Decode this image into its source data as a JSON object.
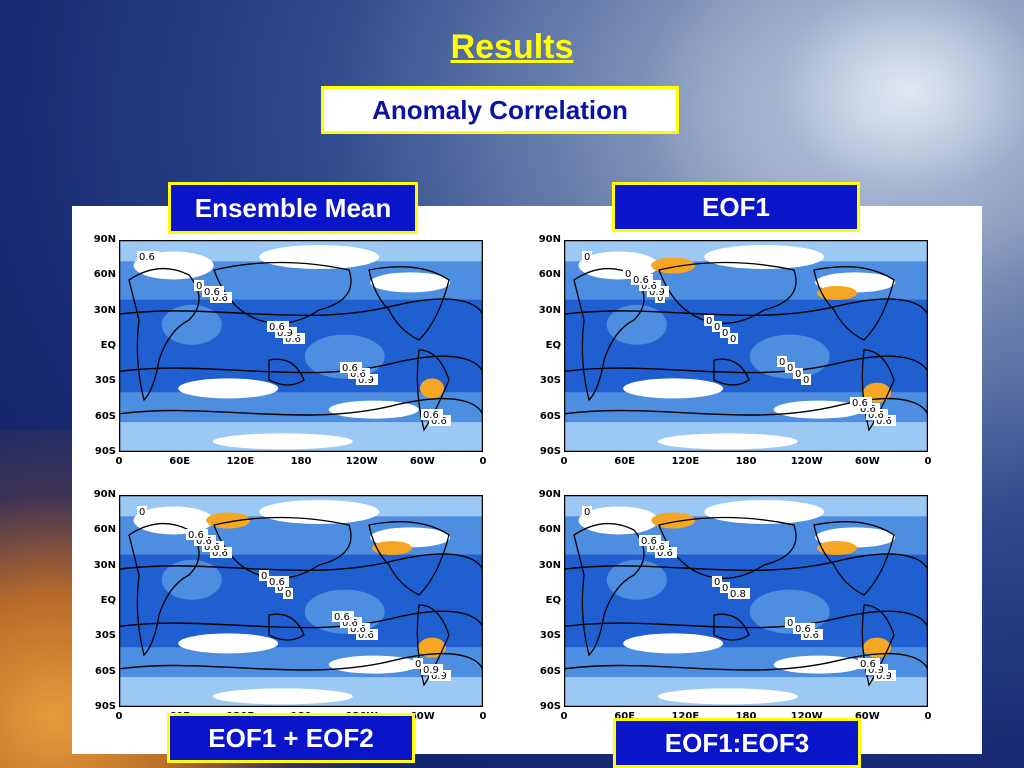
{
  "slide": {
    "title": "Results",
    "subtitle": "Anomaly Correlation"
  },
  "panels": [
    {
      "label": "Ensemble Mean",
      "contour_labels": [
        "0.6",
        "0.6",
        "0.6",
        "0.9",
        "0.6",
        "0.6",
        "0.9",
        "0.6",
        "0.6",
        "0",
        "0.6",
        "0.6"
      ]
    },
    {
      "label": "EOF1",
      "contour_labels": [
        "0",
        "0",
        "0",
        "0",
        "0.6",
        "0.9",
        "0",
        "0",
        "0.6",
        "0.6",
        "0",
        "0",
        "0.6",
        "0.6",
        "0",
        "0",
        "0.6",
        "0"
      ]
    },
    {
      "label": "EOF1 + EOF2",
      "contour_labels": [
        "0",
        "0.6",
        "0",
        "0.6",
        "0.9",
        "0.6",
        "0",
        "0.6",
        "0.9",
        "0.6",
        "0.6",
        "0.6",
        "0",
        "0.6",
        "0",
        "0.6"
      ]
    },
    {
      "label": "EOF1:EOF3",
      "contour_labels": [
        "0",
        "0.6",
        "0.8",
        "0.6",
        "0.9",
        "0.6",
        "0",
        "0.6",
        "0.9",
        "0.6",
        "0",
        "0",
        "0.6"
      ]
    }
  ],
  "axes": {
    "lat_ticks": [
      "90N",
      "60N",
      "30N",
      "EQ",
      "30S",
      "60S",
      "90S"
    ],
    "lon_ticks": [
      "0",
      "60E",
      "120E",
      "180",
      "120W",
      "60W",
      "0"
    ]
  },
  "colors": {
    "title": "#ffff00",
    "label_bg": "#0a14c8",
    "deep_blue": "#1f5fcf",
    "mid_blue": "#4d8ee0",
    "light_blue": "#9cc8f4",
    "orange": "#f5a623"
  }
}
